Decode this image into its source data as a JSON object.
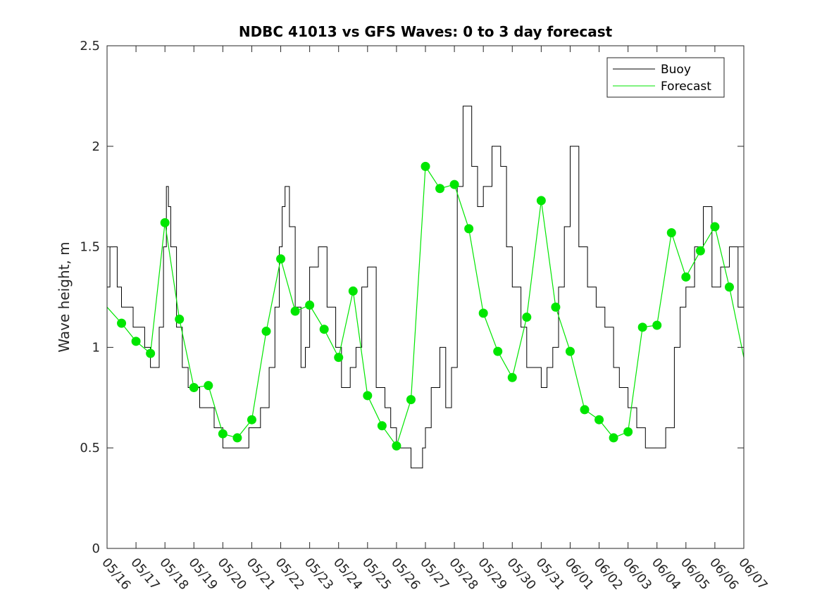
{
  "chart_data": {
    "type": "line",
    "title": "NDBC 41013 vs GFS Waves: 0 to 3 day forecast",
    "xlabel": "",
    "ylabel": "Wave height, m",
    "ylim": [
      0,
      2.5
    ],
    "yticks": [
      "0",
      "0.5",
      "1",
      "1.5",
      "2",
      "2.5"
    ],
    "xlim": [
      "05/16",
      "06/07"
    ],
    "xticks": [
      "05/16",
      "05/17",
      "05/18",
      "05/19",
      "05/20",
      "05/21",
      "05/22",
      "05/23",
      "05/24",
      "05/25",
      "05/26",
      "05/27",
      "05/28",
      "05/29",
      "05/30",
      "05/31",
      "06/01",
      "06/02",
      "06/03",
      "06/04",
      "06/05",
      "06/06",
      "06/07"
    ],
    "grid": false,
    "legend_position": "top-right",
    "colors": {
      "buoy": "#000000",
      "forecast": "#00e600",
      "axis": "#262626"
    },
    "series": [
      {
        "name": "Buoy",
        "style": "stair",
        "x": [
          0,
          0.1,
          0.35,
          0.5,
          0.9,
          1.3,
          1.5,
          1.8,
          1.95,
          2.05,
          2.12,
          2.2,
          2.4,
          2.6,
          2.8,
          3.0,
          3.2,
          3.4,
          3.7,
          4.0,
          4.5,
          4.9,
          5.3,
          5.6,
          5.8,
          5.95,
          6.05,
          6.15,
          6.3,
          6.5,
          6.7,
          6.85,
          7.0,
          7.3,
          7.6,
          7.9,
          8.1,
          8.4,
          8.6,
          8.8,
          9.0,
          9.3,
          9.6,
          9.8,
          10.0,
          10.2,
          10.5,
          10.7,
          10.9,
          11.0,
          11.2,
          11.5,
          11.7,
          11.9,
          12.1,
          12.3,
          12.6,
          12.8,
          13.0,
          13.3,
          13.6,
          13.8,
          14.0,
          14.3,
          14.5,
          14.8,
          15.0,
          15.2,
          15.4,
          15.6,
          15.8,
          16.0,
          16.3,
          16.6,
          16.9,
          17.2,
          17.5,
          17.7,
          18.0,
          18.3,
          18.6,
          18.8,
          19.0,
          19.3,
          19.6,
          19.8,
          20.0,
          20.3,
          20.6,
          20.9,
          21.2,
          21.5,
          21.8,
          22.0
        ],
        "y": [
          1.3,
          1.5,
          1.3,
          1.2,
          1.1,
          1.0,
          0.9,
          1.1,
          1.5,
          1.8,
          1.7,
          1.5,
          1.1,
          0.9,
          0.8,
          0.8,
          0.7,
          0.7,
          0.6,
          0.5,
          0.5,
          0.6,
          0.7,
          0.9,
          1.2,
          1.5,
          1.7,
          1.8,
          1.6,
          1.2,
          0.9,
          1.0,
          1.4,
          1.5,
          1.2,
          1.0,
          0.8,
          0.9,
          1.0,
          1.3,
          1.4,
          0.8,
          0.7,
          0.6,
          0.5,
          0.5,
          0.4,
          0.4,
          0.5,
          0.6,
          0.8,
          1.0,
          0.7,
          0.9,
          1.8,
          2.2,
          1.9,
          1.7,
          1.8,
          2.0,
          1.9,
          1.5,
          1.3,
          1.1,
          0.9,
          0.9,
          0.8,
          0.9,
          1.0,
          1.3,
          1.6,
          2.0,
          1.5,
          1.3,
          1.2,
          1.1,
          0.9,
          0.8,
          0.7,
          0.6,
          0.5,
          0.5,
          0.5,
          0.6,
          1.0,
          1.2,
          1.3,
          1.5,
          1.7,
          1.3,
          1.4,
          1.5,
          1.2,
          1.0
        ]
      },
      {
        "name": "Forecast",
        "style": "line",
        "x": [
          0,
          0.5,
          1.0,
          1.5,
          2.0,
          2.5,
          3.0,
          3.5,
          4.0,
          4.5,
          5.0,
          5.5,
          6.0,
          6.5,
          7.0,
          7.5,
          8.0,
          8.5,
          9.0,
          9.5,
          10.0,
          10.5,
          11.0,
          11.5,
          12.0,
          12.5,
          13.0,
          13.5,
          14.0,
          14.5,
          15.0,
          15.5,
          16.0,
          16.5,
          17.0,
          17.5,
          18.0,
          18.5,
          19.0,
          19.5,
          20.0,
          20.5,
          21.0,
          21.5,
          22.0
        ],
        "y": [
          1.2,
          1.12,
          1.03,
          0.97,
          1.62,
          1.14,
          0.8,
          0.81,
          0.57,
          0.55,
          0.64,
          1.08,
          1.44,
          1.18,
          1.21,
          1.09,
          0.95,
          1.28,
          0.76,
          0.61,
          0.51,
          0.74,
          1.9,
          1.79,
          1.81,
          1.59,
          1.17,
          0.98,
          0.85,
          1.15,
          1.73,
          1.2,
          0.98,
          0.69,
          0.64,
          0.55,
          0.58,
          1.1,
          1.11,
          1.57,
          1.35,
          1.48,
          1.6,
          1.3,
          0.95
        ]
      }
    ]
  }
}
